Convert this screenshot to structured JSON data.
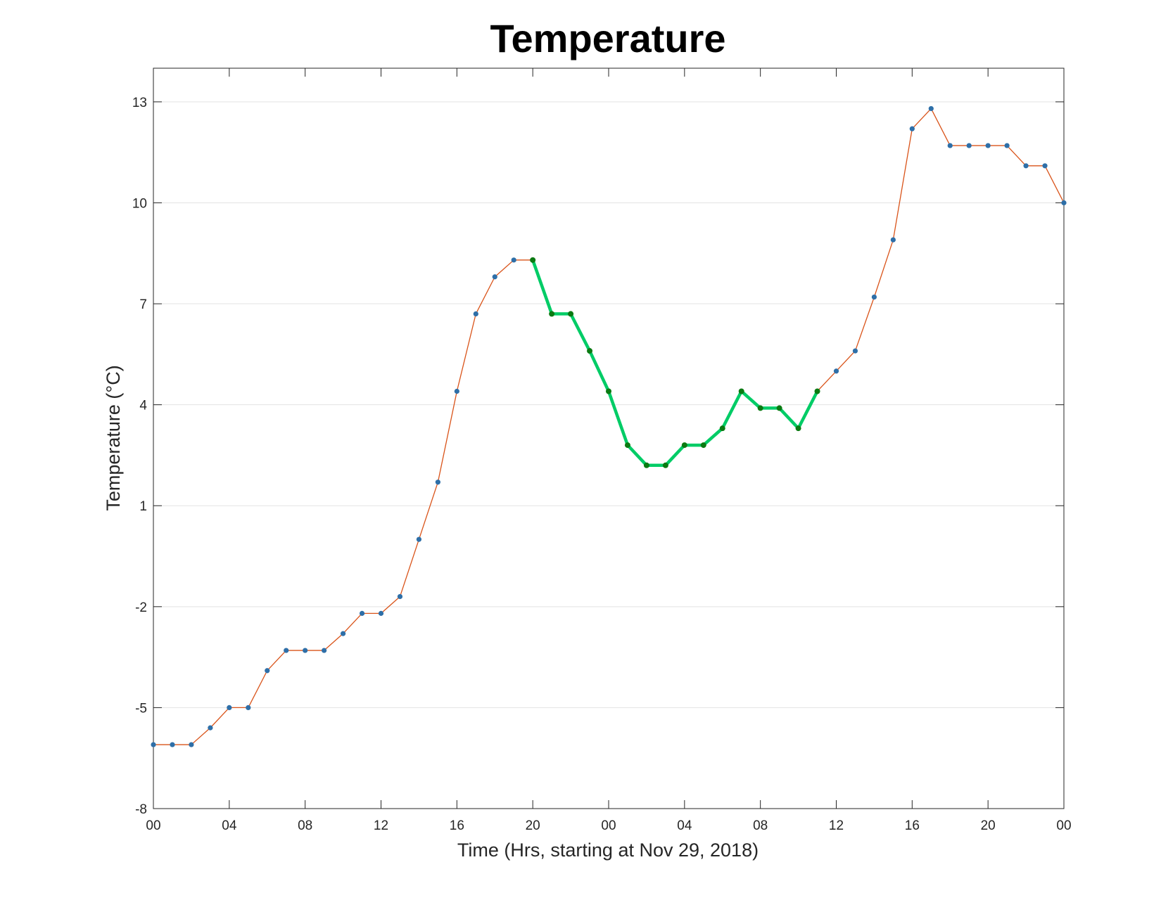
{
  "chart_data": {
    "type": "line",
    "title": "Temperature",
    "xlabel": "Time (Hrs, starting at Nov 29, 2018)",
    "ylabel": "Temperature (°C)",
    "x_start": "2018-11-29 00:00",
    "x_step_hours": 1,
    "xlim_hours": [
      0,
      48
    ],
    "ylim": [
      -8,
      14
    ],
    "x_ticks": [
      {
        "hour": 0,
        "label": "00"
      },
      {
        "hour": 4,
        "label": "04"
      },
      {
        "hour": 8,
        "label": "08"
      },
      {
        "hour": 12,
        "label": "12"
      },
      {
        "hour": 16,
        "label": "16"
      },
      {
        "hour": 20,
        "label": "20"
      },
      {
        "hour": 24,
        "label": "00"
      },
      {
        "hour": 28,
        "label": "04"
      },
      {
        "hour": 32,
        "label": "08"
      },
      {
        "hour": 36,
        "label": "12"
      },
      {
        "hour": 40,
        "label": "16"
      },
      {
        "hour": 44,
        "label": "20"
      },
      {
        "hour": 48,
        "label": "00"
      }
    ],
    "y_ticks": [
      -8,
      -5,
      -2,
      1,
      4,
      7,
      10,
      13
    ],
    "grid": "horizontal",
    "series": [
      {
        "values": [
          -6.1,
          -6.1,
          -6.1,
          -5.6,
          -5.0,
          -5.0,
          -3.9,
          -3.3,
          -3.3,
          -3.3,
          -2.8,
          -2.2,
          -2.2,
          -1.7,
          0.0,
          1.7,
          4.4,
          6.7,
          7.8,
          8.3,
          8.3,
          6.7,
          6.7,
          5.6,
          4.4,
          2.8,
          2.2,
          2.2,
          2.8,
          2.8,
          3.3,
          4.4,
          3.9,
          3.9,
          3.3,
          4.4,
          5.0,
          5.6,
          7.2,
          8.9,
          12.2,
          12.8,
          11.7,
          11.7,
          11.7,
          11.7,
          11.1,
          11.1,
          10.0
        ],
        "line_color": "#d95319",
        "marker_color": "#2e6fa8"
      }
    ],
    "highlight": {
      "from_hour": 20,
      "to_hour": 35,
      "line_color": "#00cc66",
      "marker_color": "#0b7a12"
    }
  }
}
